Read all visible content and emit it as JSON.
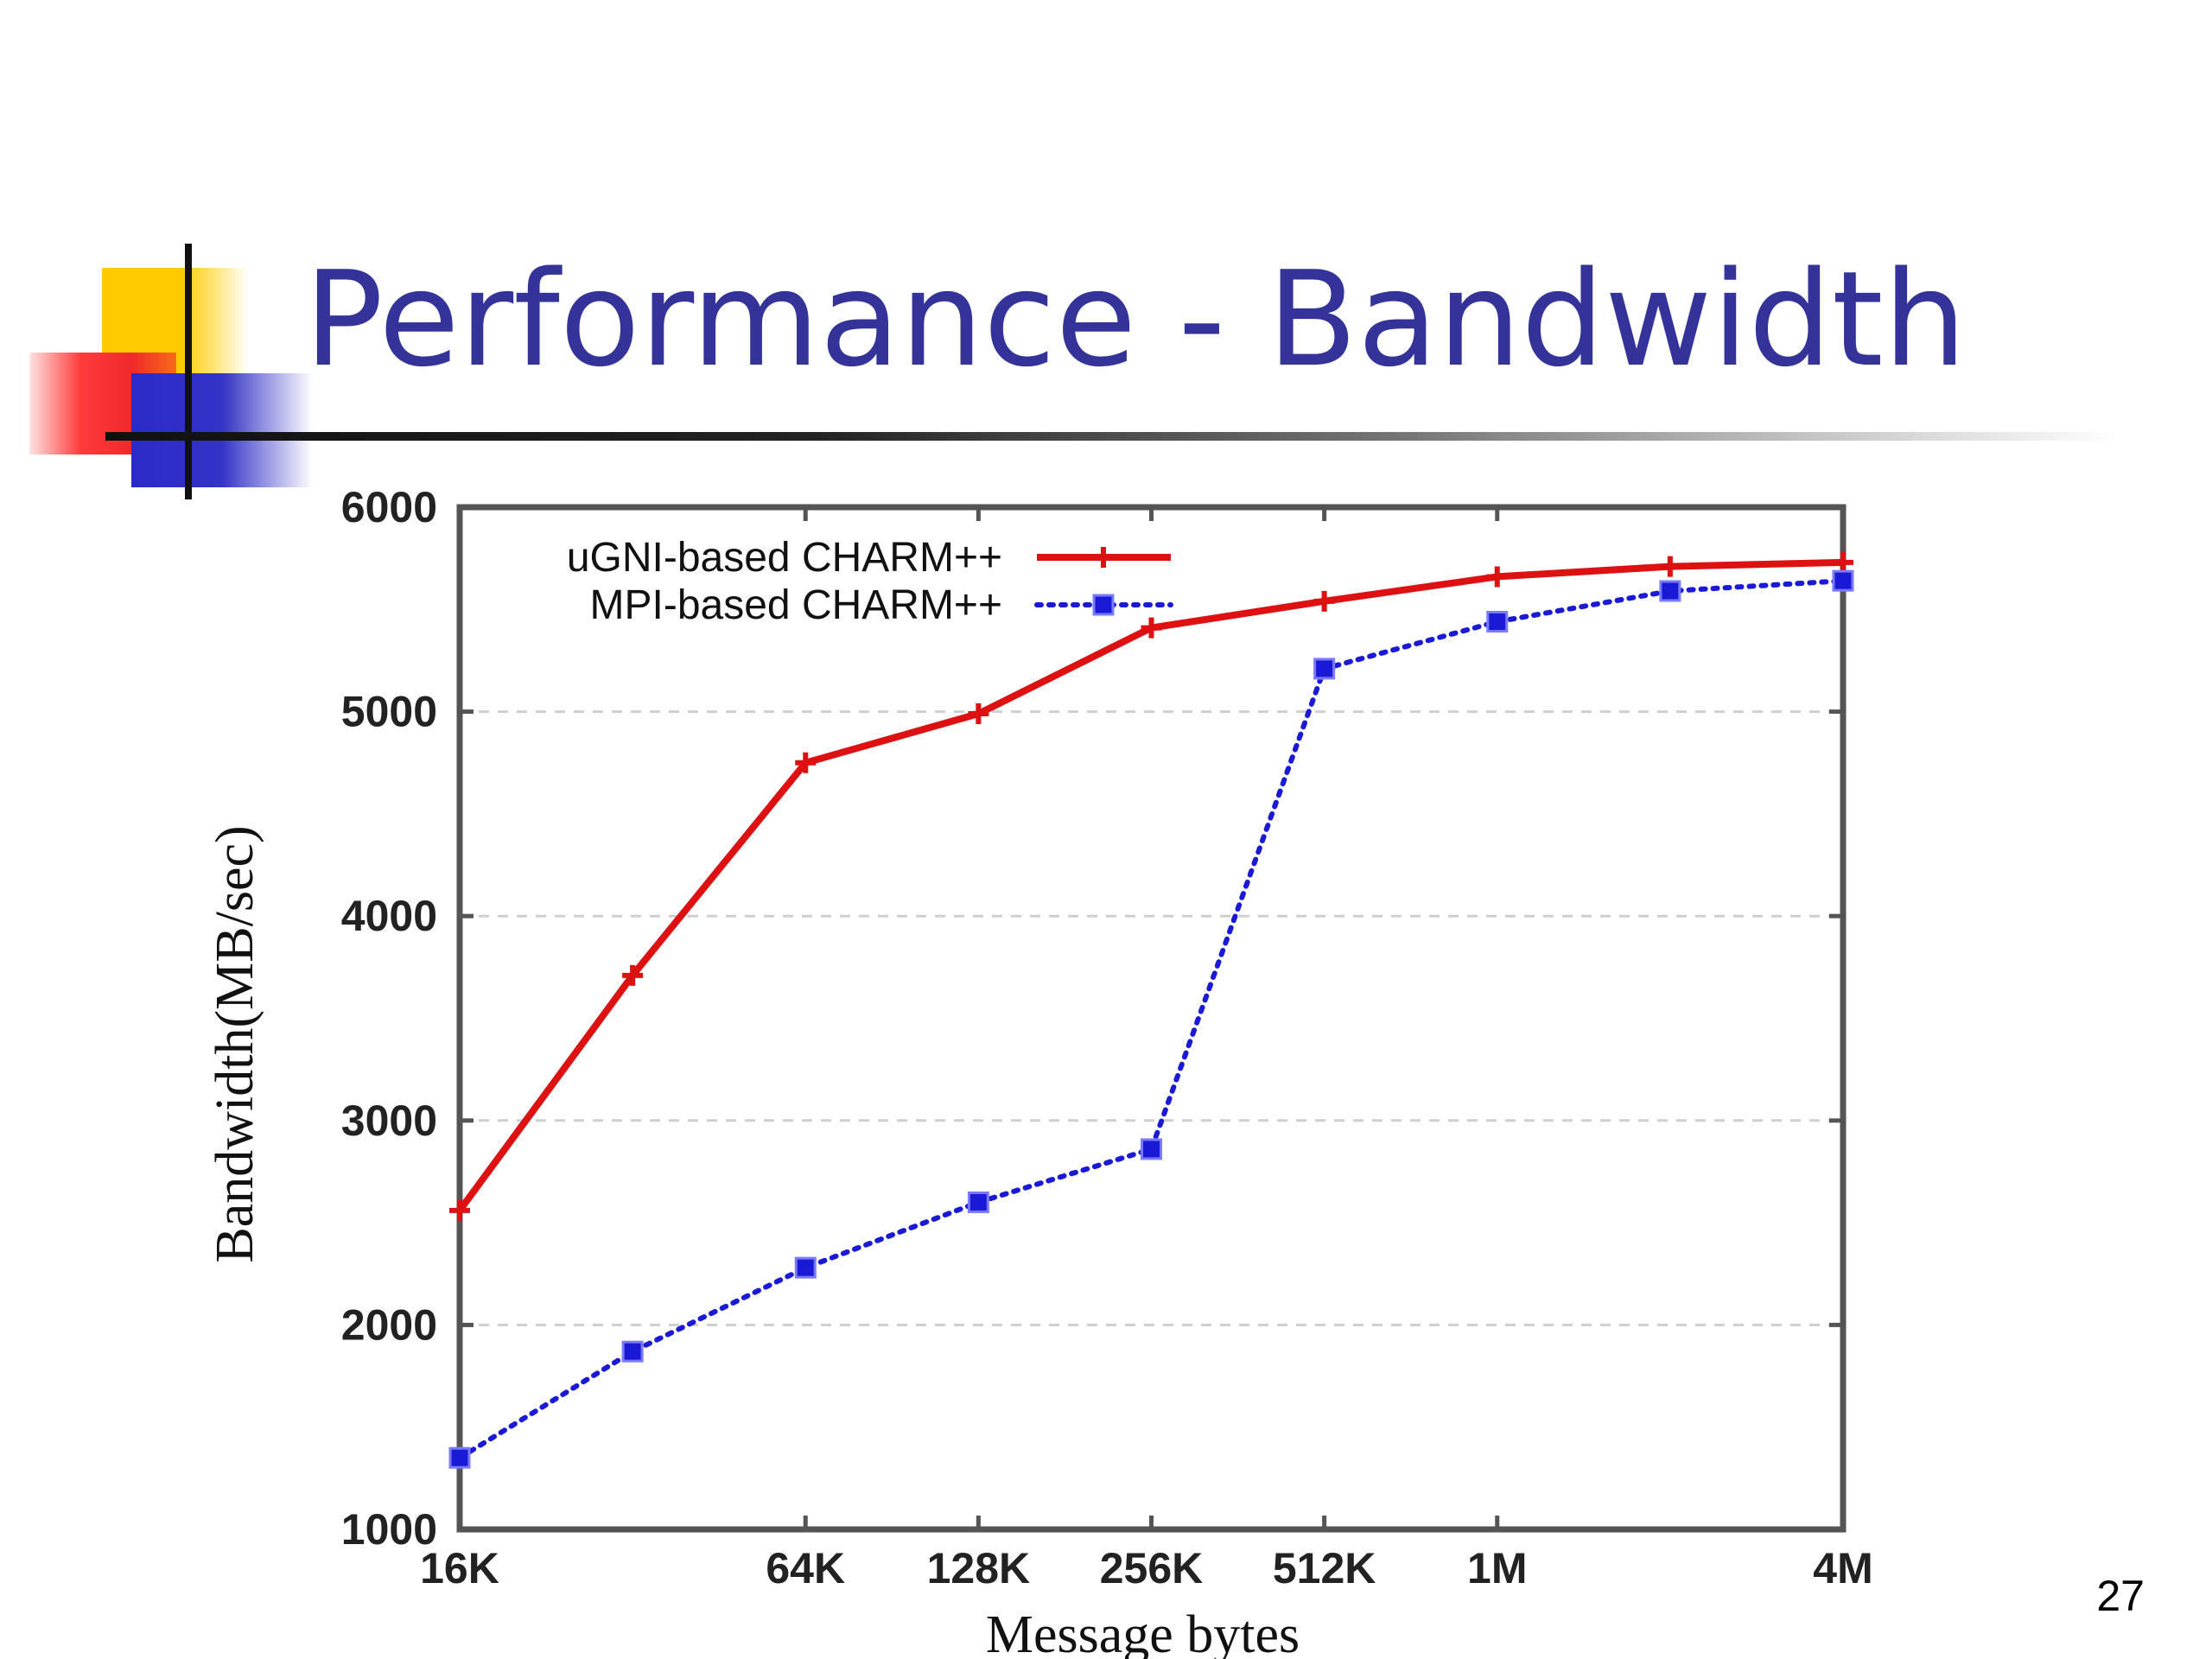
{
  "slide": {
    "title": "Performance - Bandwidth",
    "page_number": "27"
  },
  "colors": {
    "title": "#33339a",
    "series_ugni": "#dd1111",
    "series_mpi": "#1a1ad6",
    "deco_yellow": "#ffcc00",
    "deco_red": "#f02a2a",
    "deco_blue": "#3434c8"
  },
  "chart_data": {
    "type": "line",
    "title": "",
    "xlabel": "Message bytes",
    "ylabel": "Bandwidth(MB/sec)",
    "x_scale": "log2",
    "x": [
      16384,
      32768,
      65536,
      131072,
      262144,
      524288,
      1048576,
      2097152,
      4194304
    ],
    "x_ticks": [
      {
        "value": 16384,
        "label": "16K"
      },
      {
        "value": 65536,
        "label": "64K"
      },
      {
        "value": 131072,
        "label": "128K"
      },
      {
        "value": 262144,
        "label": "256K"
      },
      {
        "value": 524288,
        "label": "512K"
      },
      {
        "value": 1048576,
        "label": "1M"
      },
      {
        "value": 4194304,
        "label": "4M"
      }
    ],
    "ylim": [
      1000,
      6000
    ],
    "y_ticks": [
      1000,
      2000,
      3000,
      4000,
      5000,
      6000
    ],
    "grid": "horizontal dashed",
    "legend_position": "top-left",
    "series": [
      {
        "name": "uGNI-based CHARM++",
        "color": "#dd1111",
        "style": "solid",
        "marker": "plus",
        "values": [
          2560,
          3710,
          4750,
          4990,
          5410,
          5540,
          5660,
          5710,
          5730
        ]
      },
      {
        "name": "MPI-based CHARM++",
        "color": "#1a1ad6",
        "style": "dotted",
        "marker": "square",
        "values": [
          1350,
          1870,
          2280,
          2600,
          2860,
          5210,
          5440,
          5590,
          5640
        ]
      }
    ]
  }
}
